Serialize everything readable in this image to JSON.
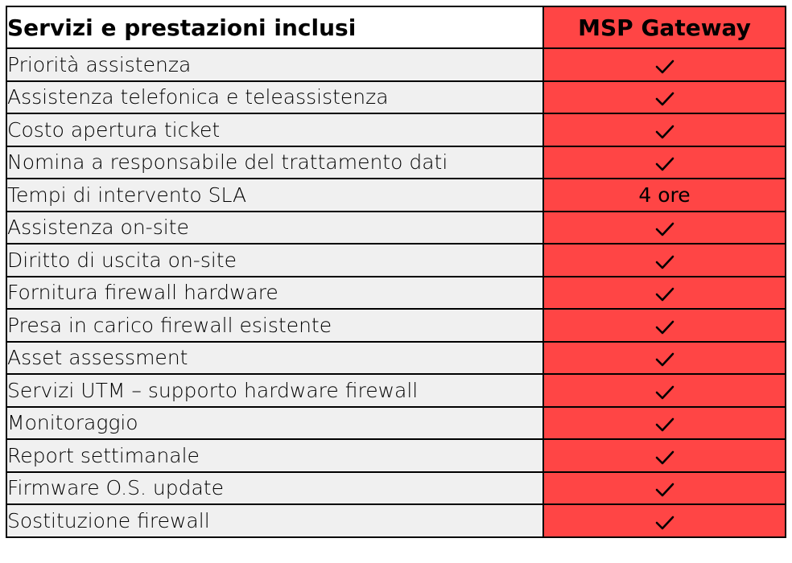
{
  "table": {
    "header": {
      "services": "Servizi e prestazioni inclusi",
      "plan": "MSP Gateway"
    },
    "colors": {
      "service_cell_bg": "#f0f0f0",
      "plan_column_bg": "#ff4545",
      "border": "#000000"
    },
    "rows": [
      {
        "service": "Priorità assistenza",
        "value": "check",
        "text": ""
      },
      {
        "service": "Assistenza telefonica e teleassistenza",
        "value": "check",
        "text": ""
      },
      {
        "service": "Costo apertura ticket",
        "value": "check",
        "text": ""
      },
      {
        "service": "Nomina a responsabile del trattamento dati",
        "value": "check",
        "text": ""
      },
      {
        "service": "Tempi di intervento SLA",
        "value": "text",
        "text": "4 ore"
      },
      {
        "service": "Assistenza on-site",
        "value": "check",
        "text": ""
      },
      {
        "service": "Diritto di uscita on-site",
        "value": "check",
        "text": ""
      },
      {
        "service": "Fornitura firewall hardware",
        "value": "check",
        "text": ""
      },
      {
        "service": "Presa in carico firewall esistente",
        "value": "check",
        "text": ""
      },
      {
        "service": "Asset assessment",
        "value": "check",
        "text": ""
      },
      {
        "service": "Servizi UTM – supporto hardware firewall",
        "value": "check",
        "text": ""
      },
      {
        "service": "Monitoraggio",
        "value": "check",
        "text": ""
      },
      {
        "service": "Report settimanale",
        "value": "check",
        "text": ""
      },
      {
        "service": "Firmware O.S. update",
        "value": "check",
        "text": ""
      },
      {
        "service": "Sostituzione firewall",
        "value": "check",
        "text": ""
      }
    ]
  }
}
